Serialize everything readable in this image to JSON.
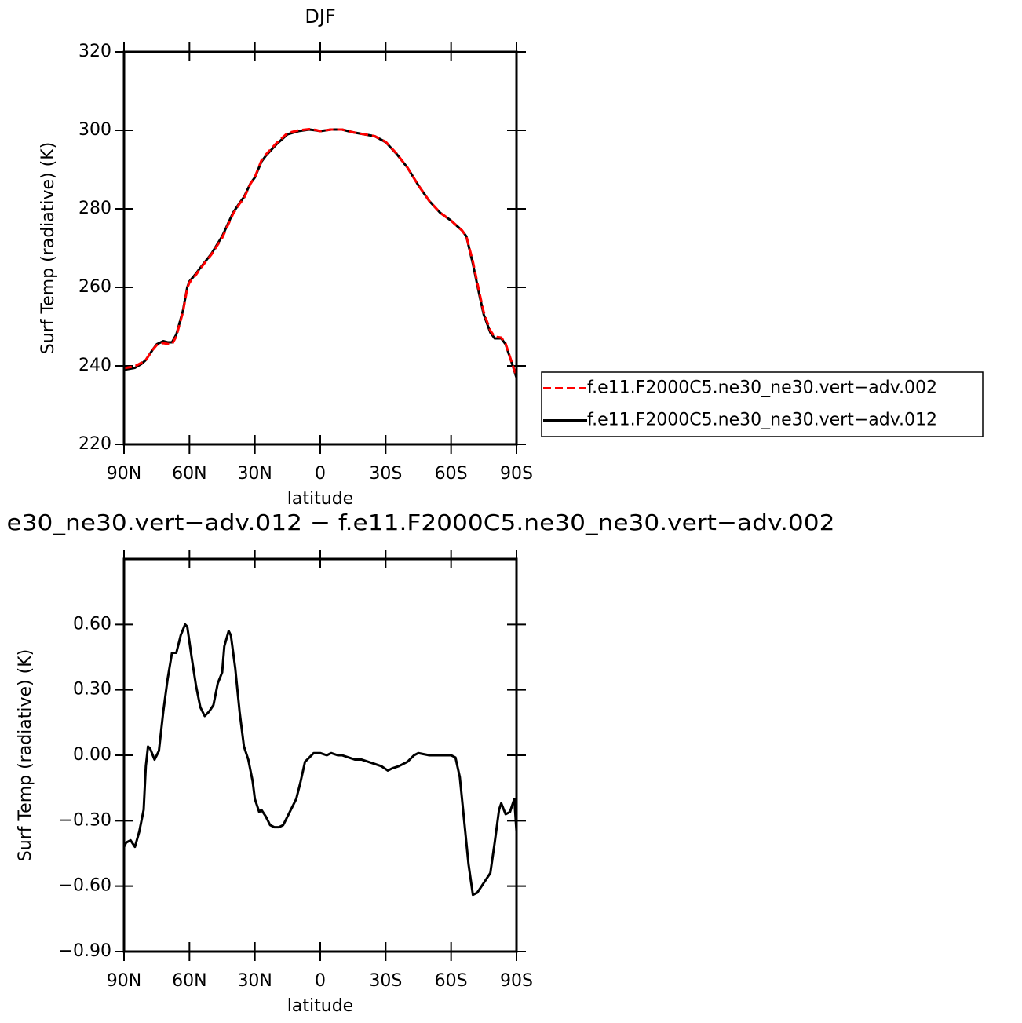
{
  "chart_data": [
    {
      "type": "line",
      "title": "DJF",
      "ylabel": "Surf Temp (radiative) (K)",
      "xlabel": "latitude",
      "x": [
        90,
        87,
        85,
        82,
        80,
        77,
        75,
        72,
        70,
        68,
        66,
        65,
        63,
        61,
        60,
        57,
        55,
        50,
        45,
        40,
        37,
        35,
        32,
        30,
        27,
        25,
        20,
        15,
        10,
        5,
        2,
        0,
        -5,
        -10,
        -15,
        -20,
        -25,
        -30,
        -35,
        -40,
        -45,
        -50,
        -55,
        -60,
        -65,
        -67,
        -70,
        -73,
        -75,
        -78,
        -80,
        -83,
        -85,
        -88,
        -90
      ],
      "series": [
        {
          "name": "f.e11.F2000C5.ne30_ne30.vert−adv.002",
          "color": "#ff0000",
          "line_style": "dashed",
          "values": [
            239.4,
            239.7,
            239.9,
            240.8,
            241.5,
            244,
            245.3,
            245.8,
            245.6,
            245.5,
            247.5,
            249.6,
            253.6,
            259.8,
            261.2,
            263.2,
            264.8,
            268.3,
            272.6,
            278.7,
            281.3,
            282.7,
            286.4,
            288.1,
            292.3,
            293.8,
            296.8,
            299.3,
            300,
            300.3,
            300.1,
            299.8,
            300.2,
            300.2,
            299.5,
            299,
            298.5,
            297.1,
            294.1,
            290.5,
            286,
            282,
            279,
            277,
            274.5,
            273,
            266.6,
            258.6,
            253.6,
            249,
            247.4,
            247.2,
            245.7,
            240.6,
            237.3
          ]
        },
        {
          "name": "f.e11.F2000C5.ne30_ne30.vert−adv.012",
          "color": "#000000",
          "line_style": "solid",
          "values": [
            239,
            239.3,
            239.5,
            240.5,
            241.5,
            244,
            245.5,
            246.3,
            246,
            246,
            248,
            250,
            254,
            260,
            261.5,
            263.5,
            265,
            268.5,
            273,
            279,
            281.5,
            283,
            286.5,
            288,
            292,
            293.5,
            296.5,
            299,
            299.8,
            300.2,
            300,
            299.8,
            300.2,
            300.2,
            299.5,
            299,
            298.5,
            297,
            294,
            290.5,
            286,
            282,
            279,
            277,
            274.5,
            273,
            266,
            258,
            253,
            248.5,
            247,
            247,
            245.5,
            240.5,
            237
          ]
        }
      ],
      "xlim": [
        90,
        -90
      ],
      "xticks": [
        {
          "value": 90,
          "label": "90N"
        },
        {
          "value": 60,
          "label": "60N"
        },
        {
          "value": 30,
          "label": "30N"
        },
        0,
        {
          "value": -30,
          "label": "30S"
        },
        {
          "value": -60,
          "label": "60S"
        },
        {
          "value": -90,
          "label": "90S"
        }
      ],
      "ylim": [
        220,
        320
      ],
      "yticks": [
        220,
        240,
        260,
        280,
        300,
        320
      ],
      "legend": "right"
    },
    {
      "type": "line",
      "title": "e30_ne30.vert−adv.012 − f.e11.F2000C5.ne30_ne30.vert−adv.002",
      "ylabel": "Surf Temp (radiative) (K)",
      "xlabel": "latitude",
      "x": [
        90,
        89,
        87,
        85,
        83,
        81,
        80,
        79,
        78,
        76,
        74,
        72,
        70,
        68,
        66,
        64,
        62,
        61,
        59,
        57,
        55,
        53,
        51,
        49,
        47,
        45,
        44,
        42,
        41,
        39,
        37,
        35,
        33,
        31,
        30,
        28,
        27,
        25,
        23,
        21,
        19,
        17,
        15,
        13,
        11,
        9,
        7,
        5,
        3,
        0,
        -3,
        -5,
        -8,
        -10,
        -13,
        -16,
        -19,
        -22,
        -25,
        -28,
        -31,
        -33,
        -36,
        -40,
        -43,
        -45,
        -50,
        -55,
        -60,
        -62,
        -64,
        -66,
        -68,
        -70,
        -72,
        -74,
        -76,
        -78,
        -80,
        -82,
        -83,
        -85,
        -87,
        -89,
        -90
      ],
      "values": [
        -0.42,
        -0.4,
        -0.39,
        -0.42,
        -0.35,
        -0.25,
        -0.05,
        0.04,
        0.03,
        -0.02,
        0.02,
        0.2,
        0.35,
        0.47,
        0.47,
        0.55,
        0.6,
        0.59,
        0.45,
        0.32,
        0.22,
        0.18,
        0.2,
        0.23,
        0.33,
        0.38,
        0.5,
        0.57,
        0.55,
        0.4,
        0.2,
        0.04,
        -0.02,
        -0.12,
        -0.2,
        -0.26,
        -0.25,
        -0.28,
        -0.32,
        -0.33,
        -0.33,
        -0.32,
        -0.28,
        -0.24,
        -0.2,
        -0.12,
        -0.03,
        -0.01,
        0.01,
        0.01,
        0,
        0.01,
        0,
        0,
        -0.01,
        -0.02,
        -0.02,
        -0.03,
        -0.04,
        -0.05,
        -0.07,
        -0.06,
        -0.05,
        -0.03,
        0,
        0.01,
        0,
        0,
        0,
        -0.01,
        -0.1,
        -0.3,
        -0.5,
        -0.64,
        -0.63,
        -0.6,
        -0.57,
        -0.54,
        -0.4,
        -0.25,
        -0.22,
        -0.27,
        -0.26,
        -0.2,
        -0.35
      ],
      "color": "#000000",
      "xlim": [
        90,
        -90
      ],
      "xticks": [
        {
          "value": 90,
          "label": "90N"
        },
        {
          "value": 60,
          "label": "60N"
        },
        {
          "value": 30,
          "label": "30N"
        },
        0,
        {
          "value": -30,
          "label": "30S"
        },
        {
          "value": -60,
          "label": "60S"
        },
        {
          "value": -90,
          "label": "90S"
        }
      ],
      "ylim": [
        -0.9,
        0.9
      ],
      "yticks": [
        {
          "value": -0.9,
          "label": "−0.90"
        },
        {
          "value": -0.6,
          "label": "−0.60"
        },
        {
          "value": -0.3,
          "label": "−0.30"
        },
        {
          "value": 0,
          "label": "0.00"
        },
        {
          "value": 0.3,
          "label": "0.30"
        },
        {
          "value": 0.6,
          "label": "0.60"
        }
      ]
    }
  ]
}
